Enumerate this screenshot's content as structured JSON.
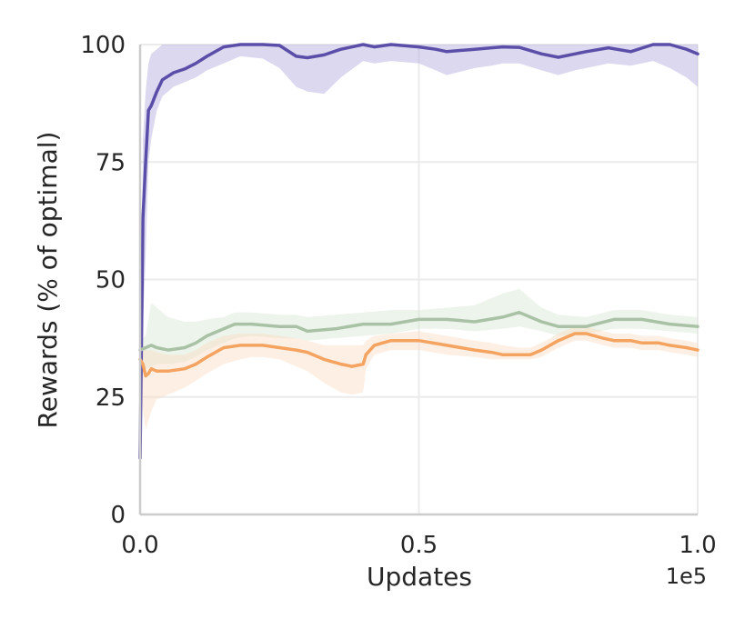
{
  "chart_data": {
    "type": "line",
    "title": "",
    "xlabel": "Updates",
    "ylabel": "Rewards (% of optimal)",
    "x_offset_label": "1e5",
    "xlim": [
      0.0,
      1.0
    ],
    "ylim": [
      0,
      100
    ],
    "xticks": [
      "0.0",
      "0.5",
      "1.0"
    ],
    "yticks": [
      "0",
      "25",
      "50",
      "75",
      "100"
    ],
    "grid": true,
    "series": [
      {
        "color": "#5a4ea8",
        "band_color": "#b1a9dc",
        "x": [
          0.0,
          0.005,
          0.01,
          0.015,
          0.02,
          0.03,
          0.04,
          0.06,
          0.08,
          0.1,
          0.12,
          0.15,
          0.18,
          0.22,
          0.25,
          0.28,
          0.3,
          0.33,
          0.36,
          0.4,
          0.42,
          0.45,
          0.5,
          0.53,
          0.55,
          0.6,
          0.63,
          0.65,
          0.68,
          0.72,
          0.75,
          0.78,
          0.8,
          0.84,
          0.88,
          0.92,
          0.95,
          0.98,
          1.0
        ],
        "y": [
          12,
          63,
          75,
          86,
          87,
          90,
          92.5,
          94,
          94.8,
          96,
          97.5,
          99.5,
          100,
          100,
          99.8,
          97.5,
          97.2,
          97.8,
          99,
          100,
          99.5,
          100,
          99.5,
          99,
          98.5,
          99,
          99.3,
          99.5,
          99.4,
          98,
          97.3,
          98,
          98.5,
          99.3,
          98.5,
          100,
          100,
          99,
          98
        ],
        "low": [
          10,
          40,
          55,
          75,
          80,
          86,
          89,
          91,
          92,
          93,
          94.5,
          96,
          97.5,
          97,
          95,
          91,
          90,
          89.5,
          93,
          96.5,
          96,
          96.5,
          96,
          94.5,
          93.5,
          95,
          95.5,
          96,
          96,
          94.5,
          93.5,
          94.5,
          95,
          96,
          95.5,
          96.5,
          95,
          93,
          91
        ],
        "high": [
          15,
          80,
          90,
          96,
          98,
          99,
          100,
          100,
          100,
          100,
          100,
          100,
          100,
          100,
          100,
          100,
          100,
          100,
          100,
          100,
          100,
          100,
          100,
          100,
          100,
          100,
          100,
          100,
          100,
          100,
          100,
          100,
          100,
          100,
          100,
          100,
          100,
          100,
          100
        ]
      },
      {
        "color": "#a9c2a6",
        "band_color": "#d8e6d3",
        "x": [
          0.0,
          0.01,
          0.02,
          0.03,
          0.05,
          0.08,
          0.1,
          0.12,
          0.15,
          0.17,
          0.2,
          0.25,
          0.28,
          0.3,
          0.35,
          0.4,
          0.45,
          0.5,
          0.55,
          0.6,
          0.65,
          0.68,
          0.7,
          0.72,
          0.75,
          0.8,
          0.85,
          0.9,
          0.95,
          1.0
        ],
        "y": [
          35,
          35.5,
          36,
          35.5,
          35,
          35.5,
          36.5,
          38,
          39.5,
          40.5,
          40.5,
          40,
          40,
          39,
          39.5,
          40.5,
          40.5,
          41.5,
          41.5,
          41,
          42,
          43,
          42,
          41,
          40,
          40,
          41.5,
          41.5,
          40.5,
          40
        ],
        "low": [
          32,
          31,
          31.5,
          32,
          32,
          32.5,
          33.5,
          35,
          36.5,
          37.5,
          38,
          37.5,
          37.5,
          37,
          37.5,
          38,
          38.5,
          39.5,
          39.5,
          39,
          39.5,
          40,
          39.5,
          39,
          38,
          38.5,
          39.5,
          39.5,
          39,
          38.5
        ],
        "high": [
          37,
          38,
          45,
          44,
          42,
          41,
          41,
          41.5,
          42,
          43,
          43,
          42.5,
          42.5,
          42,
          42.5,
          43,
          43.5,
          43.5,
          44,
          44.5,
          47,
          48,
          46,
          44,
          42.5,
          42,
          43.5,
          43.5,
          42.5,
          42
        ]
      },
      {
        "color": "#f4a460",
        "band_color": "#fbdcc0",
        "x": [
          0.0,
          0.005,
          0.01,
          0.015,
          0.02,
          0.03,
          0.05,
          0.08,
          0.1,
          0.12,
          0.15,
          0.18,
          0.2,
          0.22,
          0.25,
          0.28,
          0.3,
          0.33,
          0.36,
          0.38,
          0.4,
          0.405,
          0.42,
          0.45,
          0.5,
          0.55,
          0.6,
          0.63,
          0.65,
          0.68,
          0.7,
          0.72,
          0.75,
          0.78,
          0.8,
          0.83,
          0.85,
          0.88,
          0.9,
          0.93,
          0.95,
          0.98,
          1.0
        ],
        "y": [
          33,
          32,
          29.5,
          30,
          31,
          30.5,
          30.5,
          31,
          32,
          33.5,
          35.5,
          36,
          36,
          36,
          35.5,
          35,
          34.5,
          33,
          32,
          31.5,
          32,
          34,
          36,
          37,
          37,
          36,
          35,
          34.5,
          34,
          34,
          34,
          35,
          37,
          38.5,
          38.5,
          37.5,
          37,
          37,
          36.5,
          36.5,
          36,
          35.5,
          35
        ],
        "low": [
          30,
          22,
          18,
          20,
          22,
          24.5,
          25.5,
          27,
          28.5,
          30,
          32,
          33,
          33.5,
          33.5,
          33,
          31.5,
          30.5,
          28,
          26,
          25.5,
          26,
          31,
          34,
          35,
          35,
          34,
          33.5,
          33,
          33,
          33,
          33,
          33.5,
          35.5,
          37,
          37,
          36,
          35.5,
          35.5,
          35,
          35,
          34.5,
          34,
          33.5
        ],
        "high": [
          35,
          36,
          35,
          35,
          35,
          34.5,
          34,
          34,
          35,
          36.5,
          38,
          38.5,
          38.5,
          38.5,
          38,
          37.5,
          37,
          36,
          36,
          36,
          36,
          37,
          38,
          38.5,
          39,
          38,
          37,
          36.5,
          36,
          35.5,
          35.5,
          36.5,
          38.5,
          40,
          40,
          39,
          38.5,
          38.5,
          38,
          38,
          37.5,
          37,
          36.5
        ]
      }
    ]
  }
}
